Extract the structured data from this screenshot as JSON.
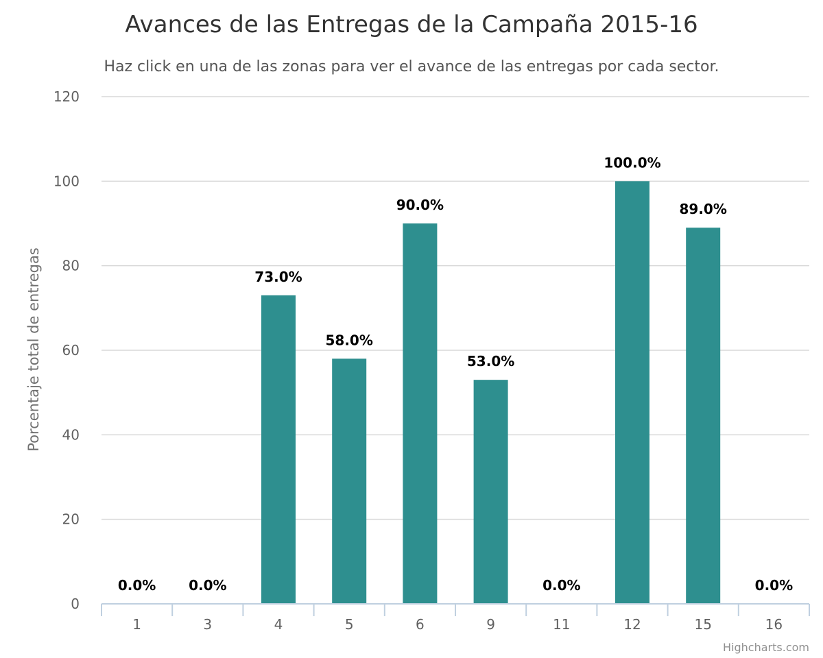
{
  "colors": {
    "bar": "#2e8f8f",
    "grid": "#d8d8d8",
    "axis": "#c0d0e0"
  },
  "credit": "Highcharts.com",
  "chart_data": {
    "type": "bar",
    "title": "Avances de las Entregas de la Campaña 2015-16",
    "subtitle": "Haz click en una de las zonas para ver el avance de las entregas por cada sector.",
    "xlabel": "",
    "ylabel": "Porcentaje total de entregas",
    "ylim": [
      0,
      120
    ],
    "yticks": [
      0,
      20,
      40,
      60,
      80,
      100,
      120
    ],
    "categories": [
      "1",
      "3",
      "4",
      "5",
      "6",
      "9",
      "11",
      "12",
      "15",
      "16"
    ],
    "values": [
      0,
      0,
      73,
      58,
      90,
      53,
      0,
      100,
      89,
      0
    ],
    "data_labels": [
      "0.0%",
      "0.0%",
      "73.0%",
      "58.0%",
      "90.0%",
      "53.0%",
      "0.0%",
      "100.0%",
      "89.0%",
      "0.0%"
    ],
    "grid": true,
    "legend": "none"
  }
}
